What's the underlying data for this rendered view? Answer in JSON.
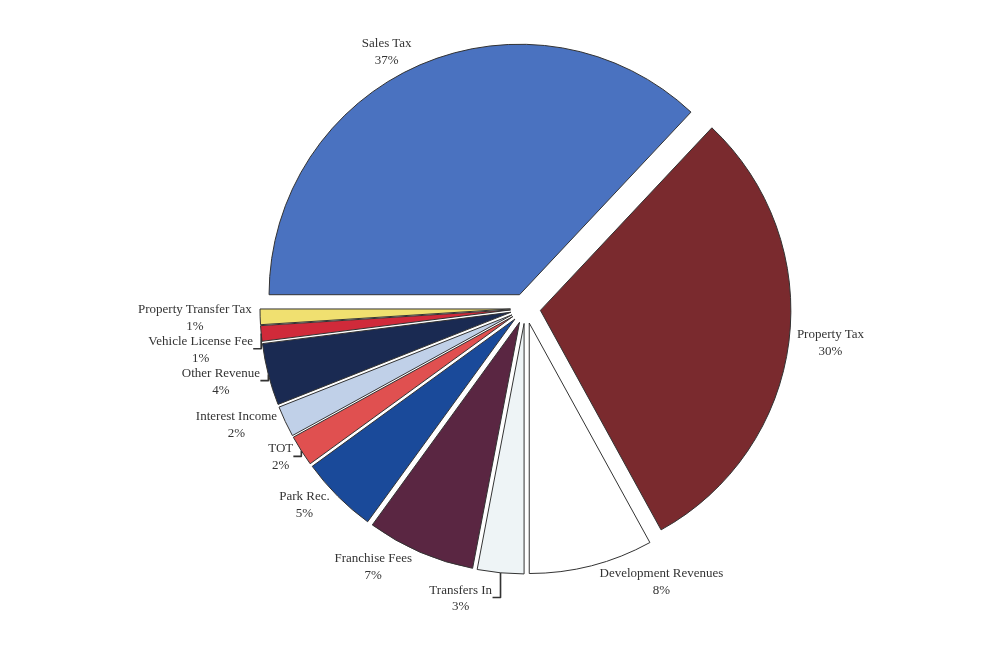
{
  "chart_data": {
    "type": "pie",
    "categories": [
      "Sales Tax",
      "Property Tax",
      "Development Revenues",
      "Transfers In",
      "Franchise Fees",
      "Park Rec.",
      "TOT",
      "Interest Income",
      "Other Revenue",
      "Vehicle License Fee",
      "Property Transfer Tax"
    ],
    "values": [
      37,
      30,
      8,
      3,
      7,
      5,
      2,
      2,
      4,
      1,
      1
    ],
    "value_labels": [
      "37%",
      "30%",
      "8%",
      "3%",
      "7%",
      "5%",
      "2%",
      "2%",
      "4%",
      "1%",
      "1%"
    ],
    "colors": [
      "#4a72c0",
      "#7a2a2e",
      "#ffffff",
      "#eef4f6",
      "#5a2642",
      "#1a4a9a",
      "#e05050",
      "#c0d0e8",
      "#1a2a52",
      "#d02a3a",
      "#f0e070"
    ],
    "legend": false
  }
}
